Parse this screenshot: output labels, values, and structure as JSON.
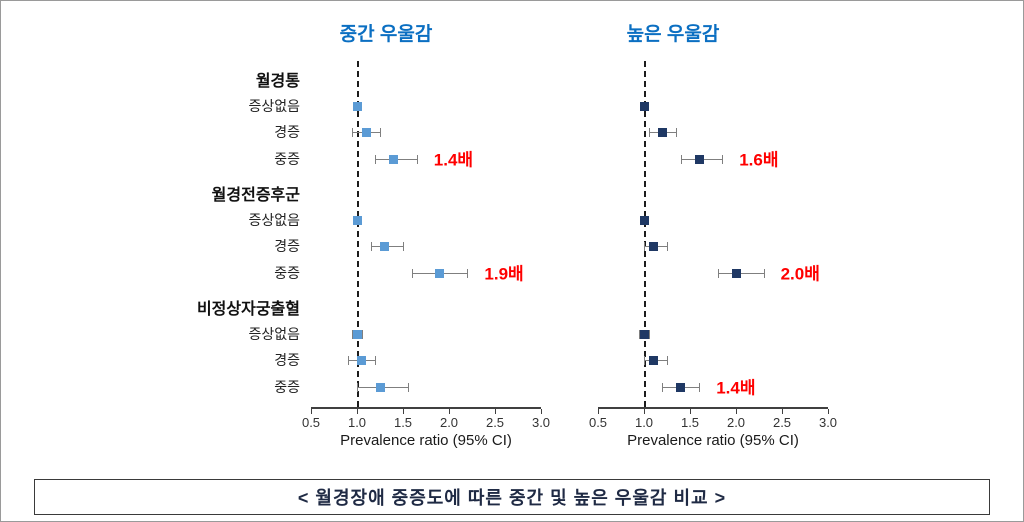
{
  "figure": {
    "caption": "< 월경장애 중증도에 따른 중간 및 높은 우울감 비교 >"
  },
  "chart_data": {
    "type": "forest",
    "xlabel": "Prevalence ratio (95% CI)",
    "xlim": [
      0.5,
      3.0
    ],
    "xticks": [
      "0.5",
      "1.0",
      "1.5",
      "2.0",
      "2.5",
      "3.0"
    ],
    "reference_line": 1.0,
    "legend_position": "none",
    "grid": false,
    "colors": {
      "panel_title": "#0b6fc2",
      "annotation": "#ff0000",
      "ci_line": "#7f7f7f",
      "moderate_marker": "#5b9bd5",
      "high_marker": "#1f3864"
    },
    "row_labels": {
      "groups": [
        {
          "label": "월경통",
          "rows": [
            "증상없음",
            "경증",
            "중증"
          ]
        },
        {
          "label": "월경전증후군",
          "rows": [
            "증상없음",
            "경증",
            "중증"
          ]
        },
        {
          "label": "비정상자궁출혈",
          "rows": [
            "증상없음",
            "경증",
            "중증"
          ]
        }
      ]
    },
    "panels": [
      {
        "title": "중간 우울감",
        "marker_color": "#5b9bd5",
        "groups": [
          {
            "label": "월경통",
            "rows": [
              {
                "label": "증상없음",
                "est": 1.0,
                "lo": 0.97,
                "hi": 1.03,
                "annotation": ""
              },
              {
                "label": "경증",
                "est": 1.1,
                "lo": 0.95,
                "hi": 1.25,
                "annotation": ""
              },
              {
                "label": "중증",
                "est": 1.4,
                "lo": 1.2,
                "hi": 1.65,
                "annotation": "1.4배"
              }
            ]
          },
          {
            "label": "월경전증후군",
            "rows": [
              {
                "label": "증상없음",
                "est": 1.0,
                "lo": 0.97,
                "hi": 1.03,
                "annotation": ""
              },
              {
                "label": "경증",
                "est": 1.3,
                "lo": 1.15,
                "hi": 1.5,
                "annotation": ""
              },
              {
                "label": "중증",
                "est": 1.9,
                "lo": 1.6,
                "hi": 2.2,
                "annotation": "1.9배"
              }
            ]
          },
          {
            "label": "비정상자궁출혈",
            "rows": [
              {
                "label": "증상없음",
                "est": 1.0,
                "lo": 0.95,
                "hi": 1.05,
                "annotation": ""
              },
              {
                "label": "경증",
                "est": 1.05,
                "lo": 0.9,
                "hi": 1.2,
                "annotation": ""
              },
              {
                "label": "중증",
                "est": 1.25,
                "lo": 1.0,
                "hi": 1.55,
                "annotation": ""
              }
            ]
          }
        ]
      },
      {
        "title": "높은 우울감",
        "marker_color": "#1f3864",
        "groups": [
          {
            "label": "월경통",
            "rows": [
              {
                "label": "증상없음",
                "est": 1.0,
                "lo": 0.97,
                "hi": 1.03,
                "annotation": ""
              },
              {
                "label": "경증",
                "est": 1.2,
                "lo": 1.05,
                "hi": 1.35,
                "annotation": ""
              },
              {
                "label": "중증",
                "est": 1.6,
                "lo": 1.4,
                "hi": 1.85,
                "annotation": "1.6배"
              }
            ]
          },
          {
            "label": "월경전증후군",
            "rows": [
              {
                "label": "증상없음",
                "est": 1.0,
                "lo": 0.97,
                "hi": 1.03,
                "annotation": ""
              },
              {
                "label": "경증",
                "est": 1.1,
                "lo": 1.0,
                "hi": 1.25,
                "annotation": ""
              },
              {
                "label": "중증",
                "est": 2.0,
                "lo": 1.8,
                "hi": 2.3,
                "annotation": "2.0배"
              }
            ]
          },
          {
            "label": "비정상자궁출혈",
            "rows": [
              {
                "label": "증상없음",
                "est": 1.0,
                "lo": 0.95,
                "hi": 1.05,
                "annotation": ""
              },
              {
                "label": "경증",
                "est": 1.1,
                "lo": 1.0,
                "hi": 1.25,
                "annotation": ""
              },
              {
                "label": "중증",
                "est": 1.4,
                "lo": 1.2,
                "hi": 1.6,
                "annotation": "1.4배"
              }
            ]
          }
        ]
      }
    ]
  }
}
